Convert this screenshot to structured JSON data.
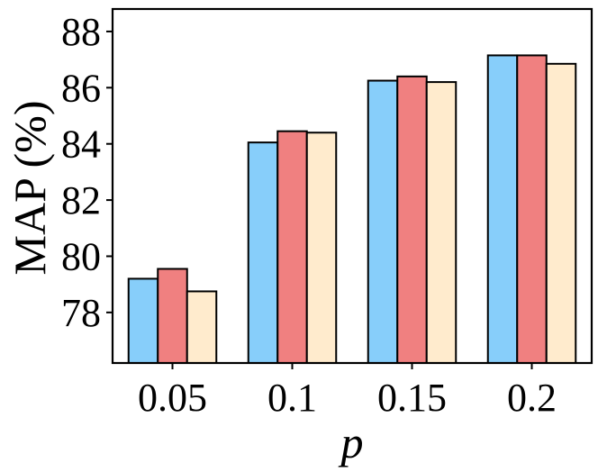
{
  "chart_data": {
    "type": "bar",
    "title": "",
    "xlabel": "p",
    "ylabel": "MAP (%)",
    "categories": [
      "0.05",
      "0.1",
      "0.15",
      "0.2"
    ],
    "yticks": [
      78,
      80,
      82,
      84,
      86,
      88
    ],
    "ylim": [
      76.2,
      88.8
    ],
    "grid": false,
    "legend": "none",
    "series": [
      {
        "color": "#87CEFA",
        "values": [
          79.2,
          84.05,
          86.25,
          87.15
        ]
      },
      {
        "color": "#F08080",
        "values": [
          79.55,
          84.45,
          86.4,
          87.15
        ]
      },
      {
        "color": "#FFEBCD",
        "values": [
          78.75,
          84.4,
          86.2,
          86.85
        ]
      }
    ]
  }
}
